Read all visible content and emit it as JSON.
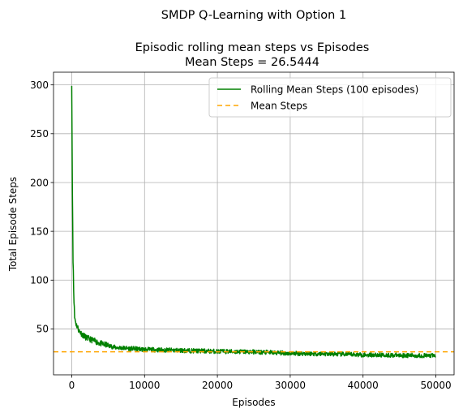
{
  "chart_data": {
    "type": "line",
    "suptitle": "SMDP Q-Learning with Option 1",
    "title_line1": "Episodic rolling mean steps vs Episodes",
    "title_line2": "Mean Steps = 26.5444",
    "xlabel": "Episodes",
    "ylabel": "Total Episode Steps",
    "xlim": [
      -2500,
      52500
    ],
    "ylim": [
      3,
      313
    ],
    "xticks": [
      0,
      10000,
      20000,
      30000,
      40000,
      50000
    ],
    "yticks": [
      50,
      100,
      150,
      200,
      250,
      300
    ],
    "grid": true,
    "legend_position": "top-right",
    "series": [
      {
        "name": "Rolling Mean Steps (100 episodes)",
        "style": "solid",
        "color": "#008000",
        "x": [
          0,
          100,
          200,
          300,
          400,
          600,
          800,
          1000,
          1500,
          2000,
          3000,
          4000,
          5000,
          6000,
          8000,
          10000,
          12000,
          15000,
          20000,
          25000,
          30000,
          35000,
          40000,
          45000,
          50000
        ],
        "y": [
          299,
          180,
          120,
          82,
          62,
          55,
          52,
          48,
          44,
          41,
          38,
          35,
          33,
          31,
          30,
          29,
          28.5,
          28,
          27,
          26.5,
          25,
          24.5,
          23.5,
          23,
          22.5
        ]
      },
      {
        "name": "Mean Steps",
        "style": "dashed",
        "color": "#ffa500",
        "y_constant": 26.5444
      }
    ]
  }
}
